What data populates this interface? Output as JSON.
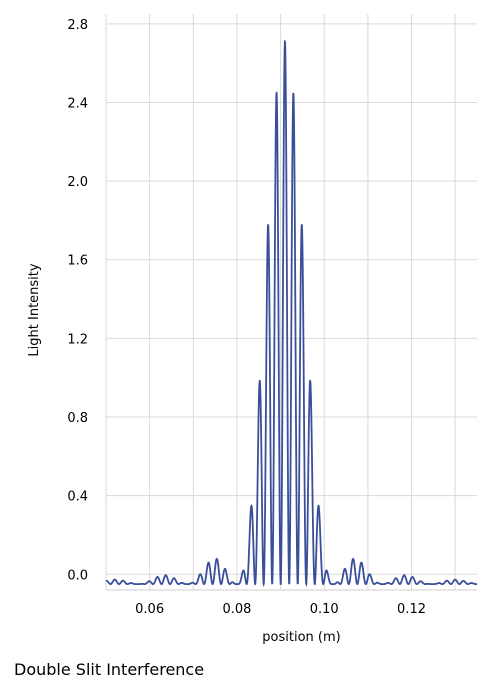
{
  "caption": "Double Slit Interference",
  "chart_data": {
    "type": "line",
    "xlabel": "position (m)",
    "ylabel": "Light Intensity",
    "xlim": [
      0.05,
      0.135
    ],
    "ylim": [
      -0.08,
      2.85
    ],
    "xticks": [
      0.06,
      0.08,
      0.1,
      0.12
    ],
    "xtick_labels": [
      "0.06",
      "0.08",
      "0.10",
      "0.12"
    ],
    "yticks": [
      0.0,
      0.4,
      0.8,
      1.2,
      1.6,
      2.0,
      2.4,
      2.8
    ],
    "ytick_labels": [
      "0.0",
      "0.4",
      "0.8",
      "1.2",
      "1.6",
      "2.0",
      "2.4",
      "2.8"
    ],
    "grid": true,
    "line_color": "#3a4f9a",
    "model": {
      "center": 0.091,
      "peak": 2.76,
      "fringe_spacing": 0.00195,
      "envelope_first_zero": 0.0112
    }
  }
}
